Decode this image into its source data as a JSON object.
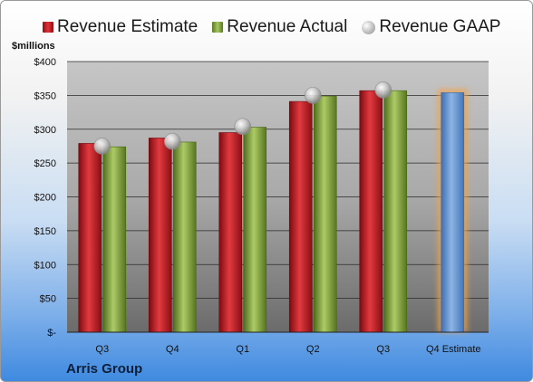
{
  "legend": {
    "estimate": "Revenue Estimate",
    "actual": "Revenue Actual",
    "gaap": "Revenue GAAP"
  },
  "units_label": "$millions",
  "company": "Arris Group",
  "colors": {
    "estimate": "#d42a30",
    "actual": "#8fb04a",
    "forecast": "#6f9bd4",
    "forecast_glow": "#f0a24a",
    "gaap": "#b8b8b8"
  },
  "chart_data": {
    "type": "bar",
    "categories": [
      "Q3",
      "Q4",
      "Q1",
      "Q2",
      "Q3",
      "Q4 Estimate"
    ],
    "ylabel": "$millions",
    "ylim": [
      0,
      400
    ],
    "yticks": [
      0,
      50,
      100,
      150,
      200,
      250,
      300,
      350,
      400
    ],
    "ytick_labels": [
      "$-",
      "$50",
      "$100",
      "$150",
      "$200",
      "$250",
      "$300",
      "$350",
      "$400"
    ],
    "grid": true,
    "legend_position": "top",
    "series": [
      {
        "name": "Revenue Estimate",
        "values": [
          279,
          287,
          295,
          341,
          357,
          354
        ]
      },
      {
        "name": "Revenue Actual",
        "values": [
          274,
          281,
          303,
          349,
          357,
          null
        ]
      },
      {
        "name": "Revenue GAAP",
        "values": [
          275,
          282,
          304,
          350,
          358,
          null
        ]
      }
    ]
  }
}
